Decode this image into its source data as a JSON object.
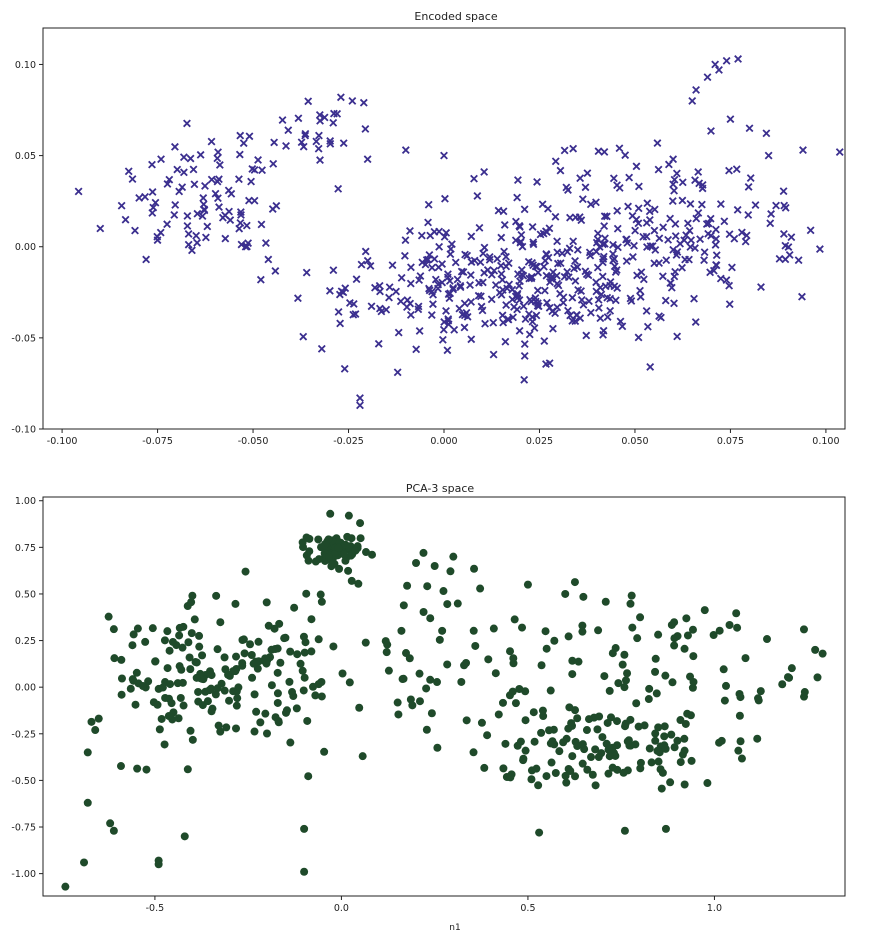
{
  "chart_data": [
    {
      "type": "scatter",
      "title": "Encoded space",
      "xlabel": "",
      "ylabel": "",
      "xlim": [
        -0.105,
        0.105
      ],
      "ylim": [
        -0.1,
        0.12
      ],
      "xticks": [
        "-0.100",
        "-0.075",
        "-0.050",
        "-0.025",
        "0.000",
        "0.025",
        "0.050",
        "0.075",
        "0.100"
      ],
      "yticks": [
        "-0.10",
        "-0.05",
        "0.00",
        "0.05",
        "0.10"
      ],
      "grid": false,
      "marker": "x",
      "color": "#3b2f8f",
      "clusters": [
        {
          "cx": -0.062,
          "cy": 0.027,
          "sx": 0.012,
          "sy": 0.018,
          "rot": 0.35,
          "n": 90
        },
        {
          "cx": -0.035,
          "cy": 0.062,
          "sx": 0.008,
          "sy": 0.012,
          "rot": 0.0,
          "n": 25
        },
        {
          "cx": 0.0,
          "cy": -0.02,
          "sx": 0.018,
          "sy": 0.018,
          "rot": 0.35,
          "n": 160
        },
        {
          "cx": 0.03,
          "cy": -0.025,
          "sx": 0.015,
          "sy": 0.016,
          "rot": 0.25,
          "n": 150
        },
        {
          "cx": 0.05,
          "cy": 0.01,
          "sx": 0.02,
          "sy": 0.022,
          "rot": 0.2,
          "n": 160
        },
        {
          "cx": 0.072,
          "cy": 0.005,
          "sx": 0.012,
          "sy": 0.012,
          "rot": 0.0,
          "n": 50
        }
      ],
      "points": [
        [
          -0.09,
          0.01
        ],
        [
          -0.078,
          -0.007
        ],
        [
          -0.066,
          -0.002
        ],
        [
          -0.046,
          -0.007
        ],
        [
          -0.032,
          -0.056
        ],
        [
          -0.026,
          -0.067
        ],
        [
          -0.022,
          -0.083
        ],
        [
          -0.022,
          -0.087
        ],
        [
          0.0,
          0.05
        ],
        [
          -0.02,
          0.048
        ],
        [
          -0.01,
          0.053
        ],
        [
          0.015,
          0.005
        ],
        [
          0.071,
          0.1
        ],
        [
          0.074,
          0.102
        ],
        [
          0.077,
          0.103
        ],
        [
          0.069,
          0.093
        ],
        [
          0.072,
          0.097
        ],
        [
          0.066,
          0.086
        ],
        [
          0.065,
          0.08
        ],
        [
          0.08,
          0.065
        ],
        [
          0.085,
          0.05
        ],
        [
          0.094,
          0.053
        ],
        [
          0.096,
          0.009
        ],
        [
          0.089,
          0.007
        ],
        [
          0.021,
          -0.073
        ],
        [
          0.06,
          0.048
        ],
        [
          0.042,
          0.052
        ],
        [
          0.075,
          0.07
        ],
        [
          -0.027,
          0.082
        ],
        [
          -0.024,
          0.08
        ],
        [
          -0.021,
          0.079
        ],
        [
          -0.029,
          0.068
        ]
      ]
    },
    {
      "type": "scatter",
      "title": "PCA-3 space",
      "xlabel": "n1",
      "ylabel": "",
      "xlim": [
        -0.8,
        1.35
      ],
      "ylim": [
        -1.12,
        1.02
      ],
      "xticks": [
        "-0.5",
        "0.0",
        "0.5",
        "1.0"
      ],
      "yticks": [
        "-1.00",
        "-0.75",
        "-0.50",
        "-0.25",
        "0.00",
        "0.25",
        "0.50",
        "0.75",
        "1.00"
      ],
      "grid": false,
      "marker": "o",
      "color": "#1f4a2a",
      "clusters": [
        {
          "cx": -0.02,
          "cy": 0.72,
          "sx": 0.035,
          "sy": 0.05,
          "rot": 0.0,
          "n": 70
        },
        {
          "cx": -0.42,
          "cy": 0.02,
          "sx": 0.12,
          "sy": 0.18,
          "rot": 0.3,
          "n": 110
        },
        {
          "cx": -0.2,
          "cy": 0.1,
          "sx": 0.12,
          "sy": 0.22,
          "rot": 0.0,
          "n": 70
        },
        {
          "cx": 0.2,
          "cy": 0.25,
          "sx": 0.2,
          "sy": 0.28,
          "rot": 0.0,
          "n": 70
        },
        {
          "cx": 0.75,
          "cy": -0.35,
          "sx": 0.12,
          "sy": 0.12,
          "rot": 0.3,
          "n": 80
        },
        {
          "cx": 0.55,
          "cy": -0.3,
          "sx": 0.12,
          "sy": 0.14,
          "rot": 0.0,
          "n": 40
        },
        {
          "cx": 1.0,
          "cy": 0.05,
          "sx": 0.15,
          "sy": 0.2,
          "rot": 0.5,
          "n": 55
        },
        {
          "cx": 0.7,
          "cy": 0.25,
          "sx": 0.15,
          "sy": 0.2,
          "rot": 0.0,
          "n": 35
        }
      ],
      "points": [
        [
          -0.74,
          -1.07
        ],
        [
          -0.69,
          -0.94
        ],
        [
          -0.68,
          -0.62
        ],
        [
          -0.68,
          -0.35
        ],
        [
          -0.62,
          -0.73
        ],
        [
          -0.61,
          -0.77
        ],
        [
          -0.49,
          -0.95
        ],
        [
          -0.49,
          -0.93
        ],
        [
          -0.42,
          -0.8
        ],
        [
          -0.1,
          -0.99
        ],
        [
          -0.1,
          -0.76
        ],
        [
          0.53,
          -0.78
        ],
        [
          0.76,
          -0.77
        ],
        [
          0.87,
          -0.76
        ],
        [
          -0.03,
          0.93
        ],
        [
          0.02,
          0.92
        ],
        [
          0.05,
          0.88
        ],
        [
          1.27,
          0.2
        ],
        [
          1.29,
          0.18
        ],
        [
          1.24,
          0.31
        ],
        [
          1.2,
          0.05
        ],
        [
          1.07,
          -0.29
        ],
        [
          -0.66,
          -0.23
        ],
        [
          0.5,
          0.55
        ],
        [
          0.6,
          0.5
        ],
        [
          0.3,
          0.7
        ],
        [
          0.22,
          0.72
        ],
        [
          0.25,
          0.65
        ]
      ]
    }
  ]
}
